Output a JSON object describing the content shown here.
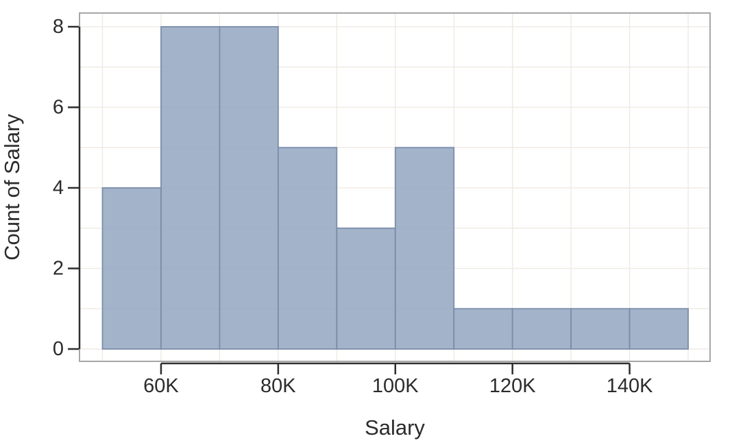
{
  "chart_data": {
    "type": "bar",
    "subtype": "histogram",
    "title": "",
    "xlabel": "Salary",
    "ylabel": "Count of Salary",
    "bin_edges_k": [
      50,
      60,
      70,
      80,
      90,
      100,
      110,
      120,
      130,
      140,
      150
    ],
    "counts": [
      4,
      8,
      8,
      5,
      3,
      5,
      1,
      1,
      1,
      1
    ],
    "x_ticks": [
      {
        "k": 60,
        "label": "60K"
      },
      {
        "k": 80,
        "label": "80K"
      },
      {
        "k": 100,
        "label": "100K"
      },
      {
        "k": 120,
        "label": "120K"
      },
      {
        "k": 140,
        "label": "140K"
      }
    ],
    "y_ticks": [
      {
        "v": 0,
        "label": "0"
      },
      {
        "v": 2,
        "label": "2"
      },
      {
        "v": 4,
        "label": "4"
      },
      {
        "v": 6,
        "label": "6"
      },
      {
        "v": 8,
        "label": "8"
      }
    ],
    "x_gridlines_k": [
      50,
      60,
      70,
      80,
      90,
      100,
      110,
      120,
      130,
      140,
      150
    ],
    "y_gridlines": [
      0,
      1,
      2,
      3,
      4,
      5,
      6,
      7,
      8
    ],
    "xlim_k": [
      46.1,
      153.7
    ],
    "ylim": [
      -0.31,
      8.34
    ],
    "grid": true,
    "legend": false,
    "colors": {
      "bar_fill": "#96a9c1",
      "bar_stroke": "#7b8dab",
      "gridline": "#f0ebe3",
      "plot_border": "#a6a6a6",
      "axis": "#2d2d2d",
      "text": "#2b2b2b",
      "background": "#ffffff"
    }
  }
}
